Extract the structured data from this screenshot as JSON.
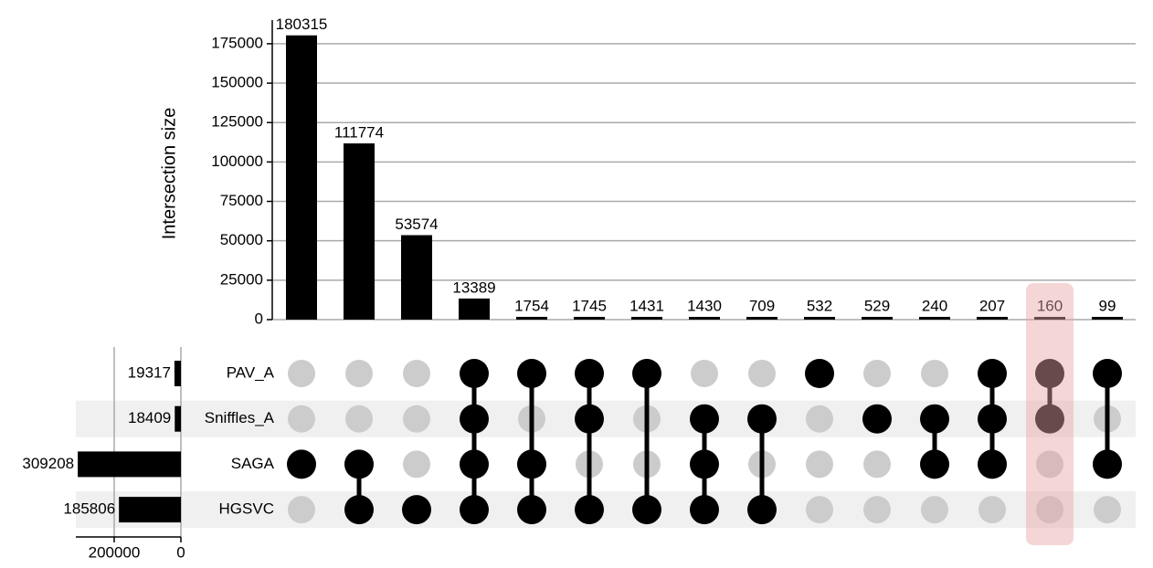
{
  "chart_data": {
    "type": "upset",
    "y_label": "Intersection size",
    "values": [
      180315,
      111774,
      53574,
      13389,
      1754,
      1745,
      1431,
      1430,
      709,
      532,
      529,
      240,
      207,
      160,
      99
    ],
    "membership": [
      [
        2
      ],
      [
        2,
        3
      ],
      [
        3
      ],
      [
        0,
        1,
        2,
        3
      ],
      [
        0,
        2,
        3
      ],
      [
        0,
        1,
        3
      ],
      [
        0,
        3
      ],
      [
        1,
        2,
        3
      ],
      [
        1,
        3
      ],
      [
        0
      ],
      [
        1
      ],
      [
        1,
        2
      ],
      [
        0,
        1,
        2
      ],
      [
        0,
        1
      ],
      [
        0,
        2
      ]
    ],
    "ylim": [
      0,
      190000
    ],
    "yticks": [
      0,
      25000,
      50000,
      75000,
      100000,
      125000,
      150000,
      175000
    ],
    "grid": true,
    "color": "#000000",
    "inactive_color": "#cccccc",
    "sets": [
      "PAV_A",
      "Sniffles_A",
      "SAGA",
      "HGSVC"
    ],
    "set_sizes": [
      19317,
      18409,
      309208,
      185806
    ],
    "set_size_xlim": [
      0,
      315000
    ],
    "set_size_xticks": [
      200000,
      0
    ],
    "highlight": 13,
    "highlight_color": "#e8a3a3"
  }
}
